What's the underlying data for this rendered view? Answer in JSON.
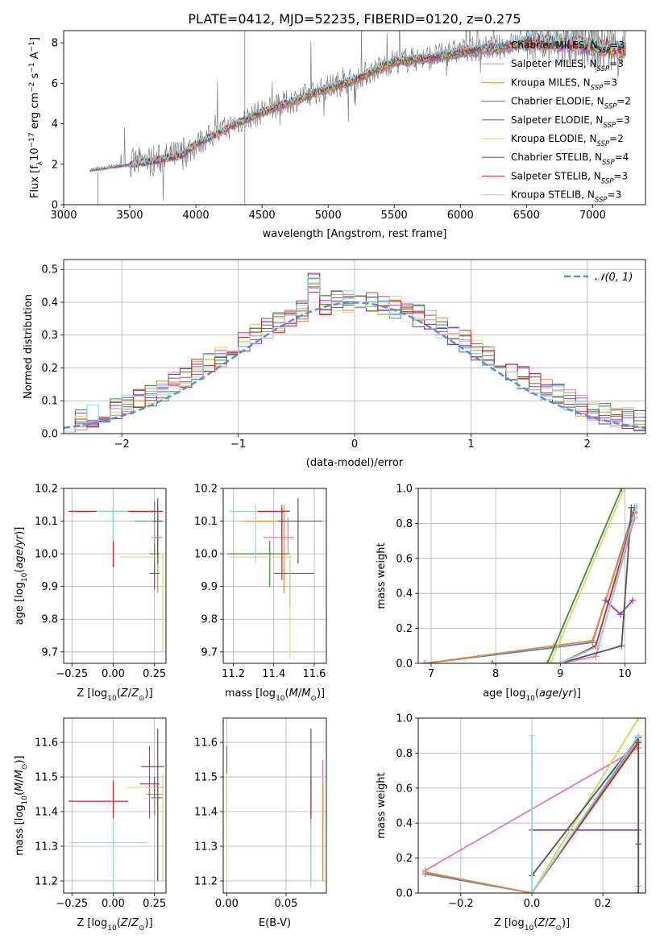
{
  "figure": {
    "title": "PLATE=0412, MJD=52235, FIBERID=0120, z=0.275",
    "colors": {
      "Chabrier MILES": "#4f81bd",
      "Salpeter MILES": "#e377c2",
      "Kroupa MILES": "#e8883a",
      "Chabrier ELODIE": "#3a8a3a",
      "Salpeter ELODIE": "#9b3fb5",
      "Kroupa ELODIE": "#d4e05a",
      "Chabrier STELIB": "#555555",
      "Salpeter STELIB": "#c0272d",
      "Kroupa STELIB": "#8fd8e0",
      "gaussian": "#5b8ed6",
      "data": "#7f7f7f"
    }
  },
  "chart_data": [
    {
      "id": "spectrum",
      "type": "line",
      "xlabel": "wavelength [Angstrom, rest frame]",
      "ylabel": "Flux [f_λ 10^-17 erg cm^-2 s^-1 A^-1]",
      "xlim": [
        3000,
        7400
      ],
      "ylim": [
        0,
        8.6
      ],
      "xticks": [
        3000,
        3500,
        4000,
        4500,
        5000,
        5500,
        6000,
        6500,
        7000
      ],
      "yticks": [
        0,
        2,
        4,
        6,
        8
      ],
      "grid": false,
      "legend_position": "upper-right",
      "legend": [
        {
          "label": "Chabrier MILES, N",
          "sub": "SSP",
          "tail": "=3"
        },
        {
          "label": "Salpeter MILES, N",
          "sub": "SSP",
          "tail": "=3"
        },
        {
          "label": "Kroupa MILES, N",
          "sub": "SSP",
          "tail": "=3"
        },
        {
          "label": "Chabrier ELODIE, N",
          "sub": "SSP",
          "tail": "=2"
        },
        {
          "label": "Salpeter ELODIE, N",
          "sub": "SSP",
          "tail": "=3"
        },
        {
          "label": "Kroupa ELODIE, N",
          "sub": "SSP",
          "tail": "=2"
        },
        {
          "label": "Chabrier STELIB, N",
          "sub": "SSP",
          "tail": "=4"
        },
        {
          "label": "Salpeter STELIB, N",
          "sub": "SSP",
          "tail": "=3"
        },
        {
          "label": "Kroupa STELIB, N",
          "sub": "SSP",
          "tail": "=3"
        }
      ],
      "continuum": {
        "x": [
          3200,
          3500,
          3700,
          3900,
          4000,
          4300,
          4500,
          4800,
          5000,
          5200,
          5500,
          5800,
          6000,
          6300,
          6500,
          6800,
          7000,
          7200
        ],
        "y": [
          1.7,
          2.0,
          2.2,
          2.5,
          3.0,
          4.0,
          4.6,
          5.3,
          5.8,
          6.2,
          7.1,
          7.3,
          7.6,
          7.8,
          8.1,
          8.0,
          7.9,
          7.7
        ]
      }
    },
    {
      "id": "residuals",
      "type": "line",
      "xlabel": "(data-model)/error",
      "ylabel": "Normed distribution",
      "xlim": [
        -2.5,
        2.5
      ],
      "ylim": [
        0,
        0.53
      ],
      "xticks": [
        -2,
        -1,
        0,
        1,
        2
      ],
      "yticks": [
        0.0,
        0.1,
        0.2,
        0.3,
        0.4,
        0.5
      ],
      "grid": true,
      "legend_position": "upper-right",
      "legend": [
        {
          "label": "𝒩(0, 1)"
        }
      ],
      "gaussian": {
        "mean": 0,
        "sigma": 1
      }
    },
    {
      "id": "age-vs-Z",
      "type": "scatter",
      "xlabel": "Z [log10(Z/Z⊙)]",
      "ylabel": "age  [log10(age/yr)]",
      "xlim": [
        -0.3,
        0.32
      ],
      "ylim": [
        9.665,
        10.2
      ],
      "xticks": [
        -0.25,
        0.0,
        0.25
      ],
      "yticks": [
        9.7,
        9.8,
        9.9,
        10.0,
        10.1,
        10.2
      ],
      "grid": true,
      "points": [
        {
          "m": "Chabrier MILES",
          "x": 0.25,
          "y": 10.1,
          "xerr": [
            0.12,
            0.04
          ],
          "yerr": [
            0.06,
            0.06
          ]
        },
        {
          "m": "Salpeter MILES",
          "x": 0.25,
          "y": 10.05,
          "xerr": [
            0.02,
            0.05
          ],
          "yerr": [
            0.05,
            0.05
          ]
        },
        {
          "m": "Kroupa MILES",
          "x": 0.27,
          "y": 10.1,
          "xerr": [
            0.05,
            0.03
          ],
          "yerr": [
            0.22,
            0.05
          ]
        },
        {
          "m": "Chabrier ELODIE",
          "x": 0.25,
          "y": 10.0,
          "xerr": [
            0.03,
            0.03
          ],
          "yerr": [
            0.1,
            0.03
          ]
        },
        {
          "m": "Salpeter ELODIE",
          "x": 0.25,
          "y": 9.94,
          "xerr": [
            0.03,
            0.03
          ],
          "yerr": [
            0.05,
            0.03
          ]
        },
        {
          "m": "Kroupa ELODIE",
          "x": 0.3,
          "y": 9.99,
          "xerr": [
            0.26,
            0.01
          ],
          "yerr": [
            0.29,
            0.01
          ]
        },
        {
          "m": "Chabrier STELIB",
          "x": 0.27,
          "y": 10.1,
          "xerr": [
            0.03,
            0.03
          ],
          "yerr": [
            0.13,
            0.07
          ]
        },
        {
          "m": "Salpeter STELIB",
          "x": 0.0,
          "y": 10.13,
          "xerr": [
            0.27,
            0.3
          ],
          "yerr": [
            0.17,
            0.01
          ]
        },
        {
          "m": "Kroupa STELIB",
          "x": 0.0,
          "y": 10.13,
          "xerr": [
            0.1,
            0.09
          ],
          "yerr": [
            0.09,
            0.01
          ]
        }
      ]
    },
    {
      "id": "age-vs-mass",
      "type": "scatter",
      "xlabel": "mass [log10(M/M⊙)]",
      "ylabel": "",
      "xlim": [
        11.15,
        11.66
      ],
      "ylim": [
        9.665,
        10.2
      ],
      "xticks": [
        11.2,
        11.4,
        11.6
      ],
      "yticks": [
        9.7,
        9.8,
        9.9,
        10.0,
        10.1,
        10.2
      ],
      "grid": true,
      "points": [
        {
          "m": "Chabrier MILES",
          "x": 11.44,
          "y": 10.1,
          "xerr": [
            0.16,
            0.04
          ],
          "yerr": [
            0.06,
            0.05
          ]
        },
        {
          "m": "Salpeter MILES",
          "x": 11.47,
          "y": 10.05,
          "xerr": [
            0.12,
            0.03
          ],
          "yerr": [
            0.05,
            0.06
          ]
        },
        {
          "m": "Kroupa MILES",
          "x": 11.45,
          "y": 10.1,
          "xerr": [
            0.2,
            0.04
          ],
          "yerr": [
            0.22,
            0.05
          ]
        },
        {
          "m": "Chabrier ELODIE",
          "x": 11.38,
          "y": 10.0,
          "xerr": [
            0.21,
            0.1
          ],
          "yerr": [
            0.1,
            0.04
          ]
        },
        {
          "m": "Salpeter ELODIE",
          "x": 11.48,
          "y": 9.94,
          "xerr": [
            0.08,
            0.12
          ],
          "yerr": [
            0.1,
            0.04
          ]
        },
        {
          "m": "Kroupa ELODIE",
          "x": 11.48,
          "y": 9.99,
          "xerr": [
            0.3,
            0.01
          ],
          "yerr": [
            0.31,
            0.01
          ]
        },
        {
          "m": "Chabrier STELIB",
          "x": 11.52,
          "y": 10.1,
          "xerr": [
            0.1,
            0.12
          ],
          "yerr": [
            0.13,
            0.07
          ]
        },
        {
          "m": "Salpeter STELIB",
          "x": 11.44,
          "y": 10.13,
          "xerr": [
            0.12,
            0.04
          ],
          "yerr": [
            0.21,
            0.01
          ]
        },
        {
          "m": "Kroupa STELIB",
          "x": 11.31,
          "y": 10.13,
          "xerr": [
            0.13,
            0.01
          ],
          "yerr": [
            0.16,
            0.02
          ]
        }
      ]
    },
    {
      "id": "weight-vs-age",
      "type": "line",
      "xlabel": "age  [log10(age/yr)]",
      "ylabel": "mass weight",
      "xlim": [
        6.8,
        10.32
      ],
      "ylim": [
        0,
        1.0
      ],
      "xticks": [
        7,
        8,
        9,
        10
      ],
      "yticks": [
        0.0,
        0.2,
        0.4,
        0.6,
        0.8,
        1.0
      ],
      "grid": true,
      "series": [
        {
          "m": "Chabrier MILES",
          "x": [
            6.9,
            8.9,
            9.5,
            10.15
          ],
          "y": [
            0.0,
            0.09,
            0.12,
            0.89
          ]
        },
        {
          "m": "Salpeter MILES",
          "x": [
            9.0,
            9.55,
            10.15
          ],
          "y": [
            0.0,
            0.04,
            0.83
          ]
        },
        {
          "m": "Kroupa MILES",
          "x": [
            6.9,
            8.9,
            9.5,
            10.15
          ],
          "y": [
            0.0,
            0.1,
            0.13,
            0.87
          ]
        },
        {
          "m": "Chabrier ELODIE",
          "x": [
            8.8,
            9.95
          ],
          "y": [
            0.0,
            1.0
          ]
        },
        {
          "m": "Salpeter ELODIE",
          "x": [
            9.7,
            9.93,
            10.12
          ],
          "y": [
            0.36,
            0.28,
            0.36
          ]
        },
        {
          "m": "Kroupa ELODIE",
          "x": [
            8.85,
            9.99
          ],
          "y": [
            0.0,
            1.0
          ]
        },
        {
          "m": "Chabrier STELIB",
          "x": [
            7.95,
            9.0,
            9.95,
            10.1
          ],
          "y": [
            0.0,
            0.0,
            0.1,
            0.89
          ]
        },
        {
          "m": "Salpeter STELIB",
          "x": [
            9.0,
            9.55,
            10.15
          ],
          "y": [
            0.0,
            0.1,
            0.86
          ]
        },
        {
          "m": "Kroupa STELIB",
          "x": [
            9.0,
            9.6,
            10.18
          ],
          "y": [
            0.0,
            0.1,
            0.9
          ]
        }
      ]
    },
    {
      "id": "mass-vs-Z",
      "type": "scatter",
      "xlabel": "Z [log10(Z/Z⊙)]",
      "ylabel": "mass [log10(M/M⊙)]",
      "xlim": [
        -0.3,
        0.32
      ],
      "ylim": [
        11.165,
        11.67
      ],
      "xticks": [
        -0.25,
        0.0,
        0.25
      ],
      "yticks": [
        11.2,
        11.3,
        11.4,
        11.5,
        11.6
      ],
      "grid": true,
      "points": [
        {
          "m": "Chabrier MILES",
          "x": 0.25,
          "y": 11.44,
          "xerr": [
            0.02,
            0.05
          ],
          "yerr": [
            0.05,
            0.04
          ]
        },
        {
          "m": "Salpeter MILES",
          "x": 0.25,
          "y": 11.47,
          "xerr": [
            0.04,
            0.05
          ],
          "yerr": [
            0.07,
            0.02
          ]
        },
        {
          "m": "Kroupa MILES",
          "x": 0.27,
          "y": 11.45,
          "xerr": [
            0.07,
            0.03
          ],
          "yerr": [
            0.25,
            0.03
          ]
        },
        {
          "m": "Chabrier ELODIE",
          "x": 0.25,
          "y": 11.47,
          "xerr": [
            0.05,
            0.05
          ],
          "yerr": [
            0.03,
            0.03
          ]
        },
        {
          "m": "Salpeter ELODIE",
          "x": 0.22,
          "y": 11.48,
          "xerr": [
            0.06,
            0.06
          ],
          "yerr": [
            0.1,
            0.11
          ]
        },
        {
          "m": "Kroupa ELODIE",
          "x": 0.3,
          "y": 11.47,
          "xerr": [
            0.22,
            0.01
          ],
          "yerr": [
            0.27,
            0.04
          ]
        },
        {
          "m": "Chabrier STELIB",
          "x": 0.27,
          "y": 11.53,
          "xerr": [
            0.1,
            0.04
          ],
          "yerr": [
            0.33,
            0.11
          ]
        },
        {
          "m": "Salpeter STELIB",
          "x": 0.0,
          "y": 11.43,
          "xerr": [
            0.27,
            0.09
          ],
          "yerr": [
            0.05,
            0.06
          ]
        },
        {
          "m": "Kroupa STELIB",
          "x": 0.0,
          "y": 11.31,
          "xerr": [
            0.27,
            0.2
          ],
          "yerr": [
            0.13,
            0.07
          ]
        }
      ]
    },
    {
      "id": "mass-vs-EBV",
      "type": "scatter",
      "xlabel": "E(B-V)",
      "ylabel": "",
      "xlim": [
        -0.003,
        0.084
      ],
      "ylim": [
        11.165,
        11.67
      ],
      "xticks": [
        0.0,
        0.05
      ],
      "yticks": [
        11.2,
        11.3,
        11.4,
        11.5,
        11.6
      ],
      "grid": true,
      "points": [
        {
          "m": "Chabrier MILES",
          "x": 0.081,
          "y": 11.44,
          "xerr": [
            0,
            0
          ],
          "yerr": [
            0.05,
            0.04
          ]
        },
        {
          "m": "Salpeter MILES",
          "x": 0.081,
          "y": 11.47,
          "xerr": [
            0,
            0
          ],
          "yerr": [
            0.1,
            0.08
          ]
        },
        {
          "m": "Kroupa MILES",
          "x": 0.081,
          "y": 11.45,
          "xerr": [
            0,
            0
          ],
          "yerr": [
            0.25,
            0.03
          ]
        },
        {
          "m": "Chabrier ELODIE",
          "x": 0.0,
          "y": 11.47,
          "xerr": [
            0,
            0
          ],
          "yerr": [
            0.03,
            0.03
          ]
        },
        {
          "m": "Salpeter ELODIE",
          "x": 0.0,
          "y": 11.48,
          "xerr": [
            0,
            0
          ],
          "yerr": [
            0.1,
            0.11
          ]
        },
        {
          "m": "Kroupa ELODIE",
          "x": 0.0,
          "y": 11.47,
          "xerr": [
            0,
            0
          ],
          "yerr": [
            0.27,
            0.04
          ]
        },
        {
          "m": "Chabrier STELIB",
          "x": 0.071,
          "y": 11.53,
          "xerr": [
            0,
            0
          ],
          "yerr": [
            0.33,
            0.11
          ]
        },
        {
          "m": "Salpeter STELIB",
          "x": 0.071,
          "y": 11.43,
          "xerr": [
            0,
            0
          ],
          "yerr": [
            0.06,
            0.06
          ]
        },
        {
          "m": "Kroupa STELIB",
          "x": 0.071,
          "y": 11.31,
          "xerr": [
            0,
            0
          ],
          "yerr": [
            0.13,
            0.07
          ]
        }
      ]
    },
    {
      "id": "weight-vs-Z",
      "type": "line",
      "xlabel": "Z [log10(Z/Z⊙)]",
      "ylabel": "mass weight",
      "xlim": [
        -0.32,
        0.32
      ],
      "ylim": [
        0,
        1.0
      ],
      "xticks": [
        -0.2,
        0.0,
        0.2
      ],
      "yticks": [
        0.0,
        0.2,
        0.4,
        0.6,
        0.8,
        1.0
      ],
      "grid": true,
      "series": [
        {
          "m": "Chabrier MILES",
          "x": [
            -0.3,
            0.0,
            0.3
          ],
          "y": [
            0.11,
            0.0,
            0.89
          ]
        },
        {
          "m": "Salpeter MILES",
          "x": [
            -0.3,
            0.3,
            0.3
          ],
          "y": [
            0.13,
            0.83,
            0.04
          ]
        },
        {
          "m": "Kroupa MILES",
          "x": [
            -0.3,
            0.0,
            0.3
          ],
          "y": [
            0.12,
            0.0,
            0.87
          ]
        },
        {
          "m": "Chabrier ELODIE",
          "x": [
            0.0,
            0.3
          ],
          "y": [
            0.0,
            1.0
          ]
        },
        {
          "m": "Salpeter ELODIE",
          "x": [
            0.0,
            0.3,
            0.3
          ],
          "y": [
            0.36,
            0.36,
            0.28
          ]
        },
        {
          "m": "Kroupa ELODIE",
          "x": [
            0.0,
            0.3
          ],
          "y": [
            0.0,
            1.0
          ]
        },
        {
          "m": "Chabrier STELIB",
          "x": [
            0.0,
            0.3,
            0.3
          ],
          "y": [
            0.1,
            0.89,
            0.0
          ]
        },
        {
          "m": "Salpeter STELIB",
          "x": [
            0.0,
            0.3
          ],
          "y": [
            0.0,
            0.86
          ]
        },
        {
          "m": "Kroupa STELIB",
          "x": [
            0.0,
            0.0,
            0.3
          ],
          "y": [
            0.9,
            0.0,
            0.9
          ]
        }
      ]
    }
  ]
}
